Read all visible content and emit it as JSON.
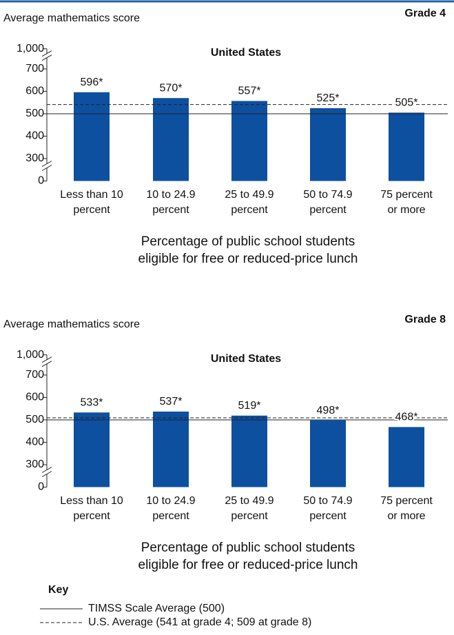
{
  "chart_data": [
    {
      "type": "bar",
      "title": "Average mathematics score",
      "grade": "Grade 4",
      "subtitle": "United States",
      "x_label": "Percentage of public school students eligible for free or reduced-price lunch",
      "categories": [
        "Less than 10 percent",
        "10 to 24.9 percent",
        "25 to 49.9 percent",
        "50 to 74.9 percent",
        "75 percent or more"
      ],
      "values": [
        596,
        570,
        557,
        525,
        505
      ],
      "value_labels": [
        "596*",
        "570*",
        "557*",
        "525*",
        "505*"
      ],
      "color": "#0d50a0",
      "ylim": [
        200,
        790
      ],
      "axis_break": true,
      "yticks": [
        0,
        300,
        400,
        500,
        600,
        700,
        {
          "value": 1000,
          "label": "1,000"
        }
      ],
      "reference_lines": [
        {
          "value": 500,
          "style": "solid"
        },
        {
          "value": 541,
          "style": "dashed"
        }
      ]
    },
    {
      "type": "bar",
      "title": "Average mathematics score",
      "grade": "Grade 8",
      "subtitle": "United States",
      "x_label": "Percentage of public school students eligible for free or reduced-price lunch",
      "categories": [
        "Less than 10 percent",
        "10 to 24.9 percent",
        "25 to 49.9 percent",
        "50 to 74.9 percent",
        "75 percent or more"
      ],
      "values": [
        533,
        537,
        519,
        498,
        468
      ],
      "value_labels": [
        "533*",
        "537*",
        "519*",
        "498*",
        "468*"
      ],
      "color": "#0d50a0",
      "ylim": [
        200,
        790
      ],
      "axis_break": true,
      "yticks": [
        0,
        300,
        400,
        500,
        600,
        700,
        {
          "value": 1000,
          "label": "1,000"
        }
      ],
      "reference_lines": [
        {
          "value": 500,
          "style": "solid"
        },
        {
          "value": 509,
          "style": "dashed"
        }
      ]
    }
  ],
  "key": {
    "title": "Key",
    "items": [
      {
        "label": "TIMSS Scale Average (500)",
        "style": "solid"
      },
      {
        "label": "U.S. Average (541 at grade 4; 509 at grade 8)",
        "style": "dashed"
      }
    ]
  }
}
